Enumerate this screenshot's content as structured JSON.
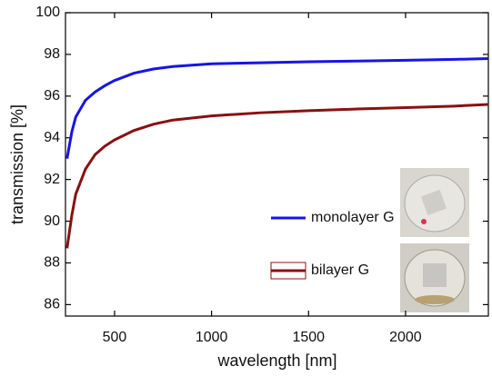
{
  "chart_data": {
    "type": "line",
    "xlabel": "wavelength [nm]",
    "ylabel": "transmission [%]",
    "x": [
      255,
      280,
      300,
      350,
      400,
      450,
      500,
      600,
      700,
      800,
      1000,
      1250,
      1500,
      1750,
      2000,
      2250,
      2427
    ],
    "series": [
      {
        "name": "monolayer G",
        "color": "#1515e8",
        "values": [
          93.0,
          94.3,
          95.0,
          95.8,
          96.2,
          96.5,
          96.75,
          97.1,
          97.3,
          97.42,
          97.55,
          97.6,
          97.65,
          97.68,
          97.72,
          97.76,
          97.8
        ]
      },
      {
        "name": "bilayer G",
        "color": "#8b1010",
        "values": [
          88.7,
          90.3,
          91.3,
          92.5,
          93.2,
          93.6,
          93.9,
          94.35,
          94.65,
          94.85,
          95.05,
          95.2,
          95.3,
          95.38,
          95.45,
          95.52,
          95.6
        ]
      }
    ],
    "xlim": [
      247,
      2427
    ],
    "ylim": [
      85.45,
      100
    ],
    "xticks": [
      500,
      1000,
      1500,
      2000
    ],
    "yticks": [
      86,
      88,
      90,
      92,
      94,
      96,
      98,
      100
    ]
  }
}
